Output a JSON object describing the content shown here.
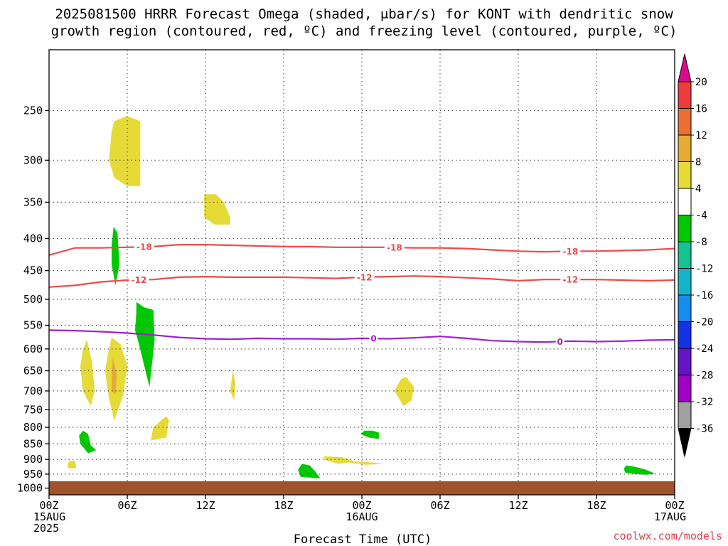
{
  "title": {
    "line1": "2025081500 HRRR Forecast Omega (shaded, μbar/s) for KONT with dendritic snow",
    "line2": "growth region (contoured, red, ºC) and freezing level (contoured, purple, ºC)"
  },
  "credit": "coolwx.com/models",
  "chart_data": {
    "type": "area",
    "xlabel": "Forecast Time (UTC)",
    "ylabel": "",
    "x_ticks": [
      {
        "hour": 0,
        "line1": "00Z",
        "line2": "15AUG",
        "line3": "2025"
      },
      {
        "hour": 6,
        "line1": "06Z",
        "line2": "",
        "line3": ""
      },
      {
        "hour": 12,
        "line1": "12Z",
        "line2": "",
        "line3": ""
      },
      {
        "hour": 18,
        "line1": "18Z",
        "line2": "",
        "line3": ""
      },
      {
        "hour": 24,
        "line1": "00Z",
        "line2": "16AUG",
        "line3": ""
      },
      {
        "hour": 30,
        "line1": "06Z",
        "line2": "",
        "line3": ""
      },
      {
        "hour": 36,
        "line1": "12Z",
        "line2": "",
        "line3": ""
      },
      {
        "hour": 42,
        "line1": "18Z",
        "line2": "",
        "line3": ""
      },
      {
        "hour": 48,
        "line1": "00Z",
        "line2": "17AUG",
        "line3": ""
      }
    ],
    "xlim": [
      0,
      48
    ],
    "y_ticks": [
      250,
      300,
      350,
      400,
      450,
      500,
      550,
      600,
      650,
      700,
      750,
      800,
      850,
      900,
      950,
      1000
    ],
    "ylim": [
      1025,
      200
    ],
    "y_scale": "log",
    "grid": true,
    "ground_level_hPa": 975,
    "colors": {
      "ground": "#a0522d",
      "dgz": "#f04848",
      "freezing": "#9f1fd2"
    },
    "isotherm_series": [
      {
        "value": -18,
        "label": "-18",
        "color": "#f04848",
        "points": [
          [
            0,
            425
          ],
          [
            2,
            414
          ],
          [
            4,
            414
          ],
          [
            6,
            413
          ],
          [
            8,
            412
          ],
          [
            10,
            409
          ],
          [
            12,
            409
          ],
          [
            14,
            410
          ],
          [
            16,
            411
          ],
          [
            18,
            412
          ],
          [
            20,
            412
          ],
          [
            22,
            413
          ],
          [
            24,
            413
          ],
          [
            26,
            413
          ],
          [
            28,
            414
          ],
          [
            30,
            414
          ],
          [
            32,
            415
          ],
          [
            34,
            417
          ],
          [
            36,
            419
          ],
          [
            38,
            420
          ],
          [
            40,
            419
          ],
          [
            42,
            419
          ],
          [
            44,
            418
          ],
          [
            46,
            417
          ],
          [
            48,
            415
          ]
        ],
        "label_hours": [
          7.3,
          26.5,
          40
        ]
      },
      {
        "value": -12,
        "label": "-12",
        "color": "#f04848",
        "points": [
          [
            0,
            478
          ],
          [
            2,
            475
          ],
          [
            4,
            469
          ],
          [
            6,
            466
          ],
          [
            8,
            465
          ],
          [
            10,
            461
          ],
          [
            12,
            460
          ],
          [
            14,
            461
          ],
          [
            16,
            461
          ],
          [
            18,
            461
          ],
          [
            20,
            462
          ],
          [
            22,
            463
          ],
          [
            24,
            461
          ],
          [
            26,
            460
          ],
          [
            28,
            459
          ],
          [
            30,
            460
          ],
          [
            32,
            462
          ],
          [
            34,
            464
          ],
          [
            36,
            467
          ],
          [
            38,
            465
          ],
          [
            40,
            465
          ],
          [
            42,
            465
          ],
          [
            44,
            466
          ],
          [
            46,
            467
          ],
          [
            48,
            466
          ]
        ],
        "label_hours": [
          6.9,
          24.2,
          40
        ]
      },
      {
        "value": 0,
        "label": "0",
        "color": "#9f1fd2",
        "points": [
          [
            0,
            560
          ],
          [
            2,
            561
          ],
          [
            4,
            563
          ],
          [
            6,
            566
          ],
          [
            8,
            570
          ],
          [
            10,
            575
          ],
          [
            12,
            578
          ],
          [
            14,
            579
          ],
          [
            16,
            577
          ],
          [
            18,
            578
          ],
          [
            20,
            578
          ],
          [
            22,
            579
          ],
          [
            24,
            577
          ],
          [
            26,
            578
          ],
          [
            28,
            576
          ],
          [
            30,
            573
          ],
          [
            32,
            577
          ],
          [
            34,
            582
          ],
          [
            36,
            584
          ],
          [
            38,
            585
          ],
          [
            40,
            583
          ],
          [
            42,
            584
          ],
          [
            44,
            583
          ],
          [
            46,
            581
          ],
          [
            48,
            580
          ]
        ],
        "label_hours": [
          24.9,
          39.2
        ]
      }
    ],
    "omega_areas": [
      {
        "band": "4-8",
        "color": "#e6da37",
        "points": [
          [
            5,
            260
          ],
          [
            6,
            255
          ],
          [
            7,
            260
          ],
          [
            7,
            330
          ],
          [
            6,
            330
          ],
          [
            5,
            320
          ],
          [
            4.6,
            300
          ],
          [
            4.8,
            270
          ]
        ]
      },
      {
        "band": "4-8",
        "color": "#e6da37",
        "points": [
          [
            11.9,
            340
          ],
          [
            12.8,
            340
          ],
          [
            13.4,
            350
          ],
          [
            13.9,
            370
          ],
          [
            13.9,
            380
          ],
          [
            12.7,
            380
          ],
          [
            11.9,
            370
          ]
        ]
      },
      {
        "band": "-8--4",
        "color": "#00c800",
        "points": [
          [
            4.95,
            383
          ],
          [
            5.25,
            392
          ],
          [
            5.4,
            440
          ],
          [
            5.1,
            475
          ],
          [
            4.8,
            440
          ],
          [
            4.8,
            410
          ]
        ]
      },
      {
        "band": "-8--4",
        "color": "#00c800",
        "points": [
          [
            6.7,
            505
          ],
          [
            7.3,
            515
          ],
          [
            8,
            520
          ],
          [
            8.1,
            580
          ],
          [
            7.7,
            690
          ],
          [
            6.9,
            590
          ],
          [
            6.6,
            560
          ],
          [
            6.7,
            525
          ]
        ]
      },
      {
        "band": "4-8",
        "color": "#e6da37",
        "points": [
          [
            2.9,
            580
          ],
          [
            3.3,
            630
          ],
          [
            3.5,
            700
          ],
          [
            3.2,
            740
          ],
          [
            2.6,
            700
          ],
          [
            2.4,
            640
          ],
          [
            2.6,
            600
          ]
        ]
      },
      {
        "band": "4-8",
        "color": "#e6da37",
        "points": [
          [
            4.8,
            575
          ],
          [
            5.5,
            590
          ],
          [
            6,
            640
          ],
          [
            5.7,
            710
          ],
          [
            5,
            780
          ],
          [
            4.6,
            720
          ],
          [
            4.3,
            650
          ],
          [
            4.6,
            600
          ]
        ]
      },
      {
        "band": "8-12",
        "color": "#e6aa37",
        "points": [
          [
            4.9,
            620
          ],
          [
            5.2,
            660
          ],
          [
            5.1,
            710
          ],
          [
            4.8,
            700
          ],
          [
            4.8,
            650
          ]
        ]
      },
      {
        "band": "4-8",
        "color": "#e6da37",
        "points": [
          [
            14.1,
            650
          ],
          [
            14.3,
            680
          ],
          [
            14.2,
            725
          ],
          [
            13.9,
            700
          ]
        ]
      },
      {
        "band": "4-8",
        "color": "#e6da37",
        "points": [
          [
            9,
            768
          ],
          [
            9.2,
            780
          ],
          [
            9,
            830
          ],
          [
            7.8,
            840
          ],
          [
            8,
            800
          ],
          [
            8.6,
            780
          ]
        ]
      },
      {
        "band": "-8--4",
        "color": "#00c800",
        "points": [
          [
            2.6,
            810
          ],
          [
            3,
            820
          ],
          [
            3.2,
            855
          ],
          [
            3.6,
            870
          ],
          [
            3,
            880
          ],
          [
            2.4,
            850
          ],
          [
            2.3,
            825
          ]
        ]
      },
      {
        "band": "4-8",
        "color": "#e6da37",
        "points": [
          [
            1.6,
            905
          ],
          [
            2,
            905
          ],
          [
            2.1,
            930
          ],
          [
            1.5,
            930
          ],
          [
            1.4,
            915
          ]
        ]
      },
      {
        "band": "4-8",
        "color": "#e6da37",
        "points": [
          [
            27.4,
            665
          ],
          [
            28,
            690
          ],
          [
            27.8,
            725
          ],
          [
            27.2,
            740
          ],
          [
            26.5,
            700
          ],
          [
            27,
            670
          ]
        ]
      },
      {
        "band": "-8--4",
        "color": "#00c800",
        "points": [
          [
            24.2,
            810
          ],
          [
            24.8,
            810
          ],
          [
            25.3,
            815
          ],
          [
            25.3,
            835
          ],
          [
            24.5,
            830
          ],
          [
            23.9,
            820
          ]
        ]
      },
      {
        "band": "4-8",
        "color": "#e6da37",
        "points": [
          [
            21.1,
            890
          ],
          [
            22.5,
            893
          ],
          [
            23.5,
            907
          ],
          [
            24.7,
            910
          ],
          [
            25.7,
            915
          ],
          [
            24.3,
            918
          ],
          [
            23,
            910
          ],
          [
            22.2,
            915
          ],
          [
            21.6,
            907
          ],
          [
            21.1,
            900
          ]
        ]
      },
      {
        "band": "-8--4",
        "color": "#00c800",
        "points": [
          [
            19.4,
            915
          ],
          [
            20,
            920
          ],
          [
            20.5,
            945
          ],
          [
            20.8,
            965
          ],
          [
            20,
            962
          ],
          [
            19.3,
            960
          ],
          [
            19.1,
            935
          ]
        ]
      },
      {
        "band": "-8--4",
        "color": "#00c800",
        "points": [
          [
            44.3,
            920
          ],
          [
            45,
            925
          ],
          [
            45.8,
            935
          ],
          [
            46.5,
            948
          ],
          [
            45.8,
            952
          ],
          [
            45,
            950
          ],
          [
            44.2,
            945
          ],
          [
            44.1,
            930
          ]
        ]
      }
    ],
    "colorbar": {
      "units": "μbar/s",
      "segments": [
        {
          "lo": 20,
          "hi": 24,
          "color": "#dc0a8c"
        },
        {
          "lo": 16,
          "hi": 20,
          "color": "#f03c3c"
        },
        {
          "lo": 12,
          "hi": 16,
          "color": "#eb6e32"
        },
        {
          "lo": 8,
          "hi": 12,
          "color": "#e6aa37"
        },
        {
          "lo": 4,
          "hi": 8,
          "color": "#e6da37"
        },
        {
          "lo": -4,
          "hi": 4,
          "color": "#ffffff"
        },
        {
          "lo": -8,
          "hi": -4,
          "color": "#00c800"
        },
        {
          "lo": -12,
          "hi": -8,
          "color": "#14c391"
        },
        {
          "lo": -16,
          "hi": -12,
          "color": "#14b4c8"
        },
        {
          "lo": -20,
          "hi": -16,
          "color": "#148cf0"
        },
        {
          "lo": -24,
          "hi": -20,
          "color": "#1432e6"
        },
        {
          "lo": -28,
          "hi": -24,
          "color": "#6414c8"
        },
        {
          "lo": -32,
          "hi": -28,
          "color": "#a000c8"
        },
        {
          "lo": -36,
          "hi": -32,
          "color": "#a0a0a0"
        },
        {
          "lo": -40,
          "hi": -36,
          "color": "#000000"
        }
      ],
      "tick_labels": [
        "20",
        "16",
        "12",
        "8",
        "4",
        "-4",
        "-8",
        "-12",
        "-16",
        "-20",
        "-24",
        "-28",
        "-32",
        "-36"
      ]
    }
  }
}
